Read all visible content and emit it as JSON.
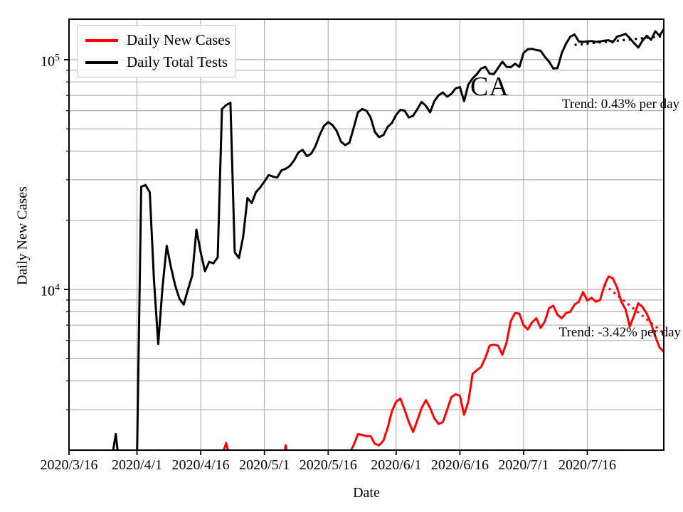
{
  "chart_data": {
    "type": "line",
    "xlabel": "Date",
    "ylabel": "Daily New Cases",
    "yscale": "log",
    "ylim": [
      2000,
      150000
    ],
    "x_span_days": 140,
    "x_start": "2020/3/16",
    "grid": true,
    "legend_position": "upper left",
    "x_ticks": [
      {
        "day": 0,
        "label": "2020/3/16"
      },
      {
        "day": 16,
        "label": "2020/4/1"
      },
      {
        "day": 31,
        "label": "2020/4/16"
      },
      {
        "day": 46,
        "label": "2020/5/1"
      },
      {
        "day": 61,
        "label": "2020/5/16"
      },
      {
        "day": 77,
        "label": "2020/6/1"
      },
      {
        "day": 92,
        "label": "2020/6/16"
      },
      {
        "day": 107,
        "label": "2020/7/1"
      },
      {
        "day": 122,
        "label": "2020/7/16"
      }
    ],
    "y_ticks": [
      {
        "base": "10",
        "exp": "4",
        "value": 10000
      },
      {
        "base": "10",
        "exp": "5",
        "value": 100000
      }
    ],
    "series": [
      {
        "name": "Daily New Cases",
        "color": "#ff0000",
        "values": [
          1300,
          1300,
          1300,
          1300,
          1300,
          1300,
          1300,
          1300,
          1300,
          1300,
          1300,
          1300,
          1300,
          1300,
          1300,
          1300,
          1300,
          1300,
          1300,
          1300,
          1300,
          1300,
          1300,
          1300,
          1300,
          1300,
          1300,
          1300,
          1300,
          1300,
          1300,
          1350,
          1400,
          1600,
          1500,
          1700,
          1900,
          2150,
          1800,
          1500,
          1400,
          1400,
          1400,
          1400,
          1400,
          1400,
          1400,
          1500,
          1400,
          1400,
          1600,
          2100,
          1700,
          1400,
          1400,
          1400,
          1400,
          1500,
          1500,
          1500,
          1600,
          1700,
          1750,
          1800,
          1850,
          1900,
          1950,
          2100,
          2350,
          2330,
          2300,
          2300,
          2130,
          2100,
          2200,
          2500,
          2950,
          3250,
          3350,
          3000,
          2650,
          2400,
          2700,
          3050,
          3300,
          3050,
          2750,
          2600,
          2650,
          3000,
          3400,
          3500,
          3450,
          2850,
          3250,
          4300,
          4450,
          4600,
          5050,
          5700,
          5750,
          5700,
          5200,
          5900,
          7300,
          7900,
          7850,
          7000,
          6700,
          7200,
          7500,
          6800,
          7250,
          8300,
          8500,
          7750,
          7500,
          7900,
          8000,
          8600,
          8850,
          9750,
          8950,
          9200,
          8850,
          9000,
          10400,
          11400,
          11200,
          10200,
          8850,
          8200,
          6900,
          7700,
          8700,
          8400,
          7850,
          7100,
          6250,
          5600,
          5350
        ]
      },
      {
        "name": "Daily Total Tests",
        "color": "#000000",
        "values": [
          1400,
          1400,
          1400,
          1400,
          1400,
          1400,
          1400,
          1400,
          1450,
          1500,
          1800,
          2350,
          1600,
          1450,
          1400,
          1500,
          1800,
          28000,
          28500,
          26500,
          11000,
          5800,
          10200,
          15500,
          12500,
          10400,
          9100,
          8600,
          10000,
          11500,
          18200,
          14500,
          12000,
          13200,
          13000,
          13800,
          61000,
          63500,
          65000,
          14500,
          13700,
          17000,
          25000,
          23800,
          26500,
          27800,
          29500,
          31500,
          31000,
          30700,
          33000,
          33500,
          34500,
          36500,
          39500,
          40500,
          38000,
          39000,
          42000,
          47000,
          51500,
          53500,
          52000,
          49000,
          44000,
          42500,
          43500,
          50500,
          59000,
          61000,
          60000,
          56000,
          48500,
          46000,
          47000,
          51000,
          53000,
          57500,
          60500,
          60000,
          56000,
          57000,
          61000,
          65500,
          63000,
          59000,
          66000,
          70000,
          72000,
          69000,
          71000,
          75000,
          76000,
          66000,
          78000,
          83000,
          86500,
          91500,
          93000,
          87000,
          86500,
          92000,
          98000,
          93000,
          92800,
          96000,
          93000,
          107000,
          111000,
          111500,
          110000,
          109500,
          103000,
          98000,
          91500,
          92000,
          107000,
          117500,
          126000,
          128600,
          120000,
          119500,
          120000,
          120500,
          119500,
          120000,
          121000,
          121500,
          119000,
          126000,
          127500,
          129500,
          124000,
          118000,
          113000,
          121000,
          127000,
          122000,
          133000,
          127000,
          136000
        ]
      }
    ],
    "trend_lines": [
      {
        "series": "Daily Total Tests",
        "label": "Trend: 0.43% per day",
        "rate_percent_per_day": 0.43,
        "color": "#000000",
        "start_day": 119,
        "start_value": 116000,
        "end_day": 140,
        "end_value": 126500
      },
      {
        "series": "Daily New Cases",
        "label": "Trend: -3.42% per day",
        "rate_percent_per_day": -3.42,
        "color": "#ff0000",
        "start_day": 126,
        "start_value": 10500,
        "end_day": 140,
        "end_value": 6450
      }
    ],
    "annotation": {
      "text": "CA"
    },
    "colors": {
      "grid": "#b0b0b0",
      "spine": "#000000",
      "background": "#ffffff"
    }
  }
}
